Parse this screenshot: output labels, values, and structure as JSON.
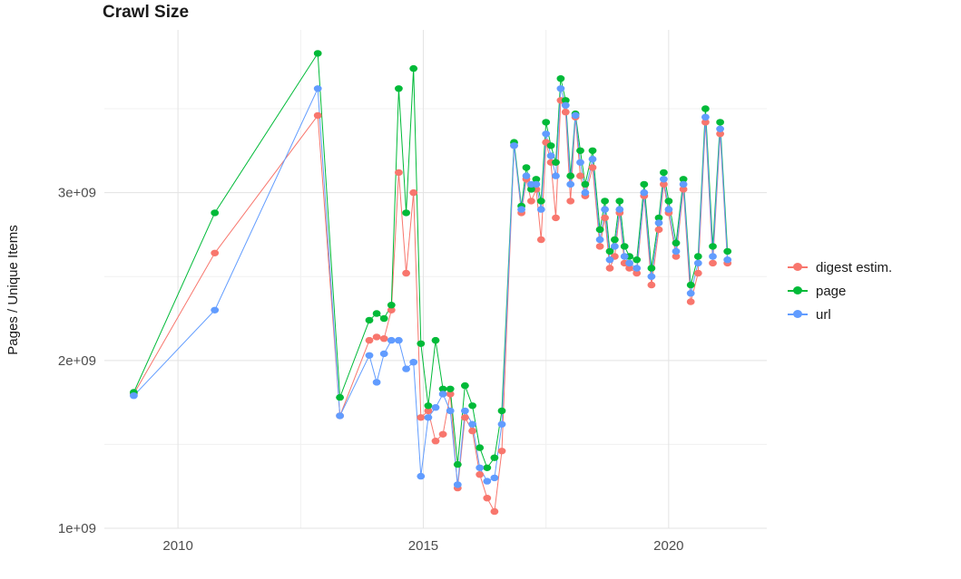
{
  "title": "Crawl Size",
  "ylabel": "Pages / Unique Items",
  "colors": {
    "digest": "#F8766D",
    "page": "#00BA38",
    "url": "#619CFF",
    "grid_major": "#e3e3e3",
    "grid_minor": "#f0f0f0",
    "tick_text": "#4d4d4d"
  },
  "chart_data": {
    "type": "scatter",
    "title": "Crawl Size",
    "xlabel": "",
    "ylabel": "Pages / Unique Items",
    "legend_position": "right",
    "grid": true,
    "x_range": [
      2008.5,
      2022.0
    ],
    "y_range": [
      1000000000.0,
      3970000000.0
    ],
    "x_ticks": [
      2010,
      2015,
      2020
    ],
    "x_tick_labels": [
      "2010",
      "2015",
      "2020"
    ],
    "y_ticks": [
      1000000000.0,
      2000000000.0,
      3000000000.0
    ],
    "y_tick_labels": [
      "1e+09",
      "2e+09",
      "3e+09"
    ],
    "x_minor": [
      2012.5,
      2017.5
    ],
    "y_minor": [
      1500000000.0,
      2500000000.0,
      3500000000.0
    ],
    "x": [
      2009.1,
      2010.75,
      2012.85,
      2013.3,
      2013.9,
      2014.05,
      2014.2,
      2014.35,
      2014.5,
      2014.65,
      2014.8,
      2014.95,
      2015.1,
      2015.25,
      2015.4,
      2015.55,
      2015.7,
      2015.85,
      2016.0,
      2016.15,
      2016.3,
      2016.45,
      2016.6,
      2016.85,
      2017.0,
      2017.1,
      2017.2,
      2017.3,
      2017.4,
      2017.5,
      2017.6,
      2017.7,
      2017.8,
      2017.9,
      2018.0,
      2018.1,
      2018.2,
      2018.3,
      2018.45,
      2018.6,
      2018.7,
      2018.8,
      2018.9,
      2019.0,
      2019.1,
      2019.2,
      2019.35,
      2019.5,
      2019.65,
      2019.8,
      2019.9,
      2020.0,
      2020.15,
      2020.3,
      2020.45,
      2020.6,
      2020.75,
      2020.9,
      2021.05,
      2021.2
    ],
    "series": [
      {
        "name": "digest estim.",
        "color": "#F8766D",
        "values": [
          1800000000.0,
          2640000000.0,
          3460000000.0,
          1670000000.0,
          2120000000.0,
          2140000000.0,
          2130000000.0,
          2300000000.0,
          3120000000.0,
          2520000000.0,
          3000000000.0,
          1660000000.0,
          1700000000.0,
          1520000000.0,
          1560000000.0,
          1800000000.0,
          1240000000.0,
          1660000000.0,
          1580000000.0,
          1320000000.0,
          1180000000.0,
          1100000000.0,
          1460000000.0,
          3280000000.0,
          2880000000.0,
          3080000000.0,
          2950000000.0,
          3020000000.0,
          2720000000.0,
          3300000000.0,
          3180000000.0,
          2850000000.0,
          3550000000.0,
          3480000000.0,
          2950000000.0,
          3450000000.0,
          3100000000.0,
          2980000000.0,
          3150000000.0,
          2680000000.0,
          2850000000.0,
          2550000000.0,
          2620000000.0,
          2880000000.0,
          2580000000.0,
          2550000000.0,
          2520000000.0,
          2980000000.0,
          2450000000.0,
          2780000000.0,
          3050000000.0,
          2880000000.0,
          2620000000.0,
          3020000000.0,
          2350000000.0,
          2520000000.0,
          3420000000.0,
          2580000000.0,
          3350000000.0,
          2580000000.0
        ]
      },
      {
        "name": "page",
        "color": "#00BA38",
        "values": [
          1810000000.0,
          2880000000.0,
          3830000000.0,
          1780000000.0,
          2240000000.0,
          2280000000.0,
          2250000000.0,
          2330000000.0,
          3620000000.0,
          2880000000.0,
          3740000000.0,
          2100000000.0,
          1730000000.0,
          2120000000.0,
          1830000000.0,
          1830000000.0,
          1380000000.0,
          1850000000.0,
          1730000000.0,
          1480000000.0,
          1360000000.0,
          1420000000.0,
          1700000000.0,
          3300000000.0,
          2920000000.0,
          3150000000.0,
          3020000000.0,
          3080000000.0,
          2950000000.0,
          3420000000.0,
          3280000000.0,
          3180000000.0,
          3680000000.0,
          3550000000.0,
          3100000000.0,
          3470000000.0,
          3250000000.0,
          3050000000.0,
          3250000000.0,
          2780000000.0,
          2950000000.0,
          2650000000.0,
          2720000000.0,
          2950000000.0,
          2680000000.0,
          2620000000.0,
          2600000000.0,
          3050000000.0,
          2550000000.0,
          2850000000.0,
          3120000000.0,
          2950000000.0,
          2700000000.0,
          3080000000.0,
          2450000000.0,
          2620000000.0,
          3500000000.0,
          2680000000.0,
          3420000000.0,
          2650000000.0
        ]
      },
      {
        "name": "url",
        "color": "#619CFF",
        "values": [
          1790000000.0,
          2300000000.0,
          3620000000.0,
          1670000000.0,
          2030000000.0,
          1870000000.0,
          2040000000.0,
          2120000000.0,
          2120000000.0,
          1950000000.0,
          1990000000.0,
          1310000000.0,
          1660000000.0,
          1720000000.0,
          1800000000.0,
          1700000000.0,
          1260000000.0,
          1700000000.0,
          1620000000.0,
          1360000000.0,
          1280000000.0,
          1300000000.0,
          1620000000.0,
          3280000000.0,
          2900000000.0,
          3100000000.0,
          3050000000.0,
          3050000000.0,
          2900000000.0,
          3350000000.0,
          3220000000.0,
          3100000000.0,
          3620000000.0,
          3520000000.0,
          3050000000.0,
          3460000000.0,
          3180000000.0,
          3000000000.0,
          3200000000.0,
          2720000000.0,
          2900000000.0,
          2600000000.0,
          2680000000.0,
          2900000000.0,
          2620000000.0,
          2580000000.0,
          2550000000.0,
          3000000000.0,
          2500000000.0,
          2820000000.0,
          3080000000.0,
          2900000000.0,
          2650000000.0,
          3050000000.0,
          2400000000.0,
          2580000000.0,
          3450000000.0,
          2620000000.0,
          3380000000.0,
          2600000000.0
        ]
      }
    ]
  }
}
